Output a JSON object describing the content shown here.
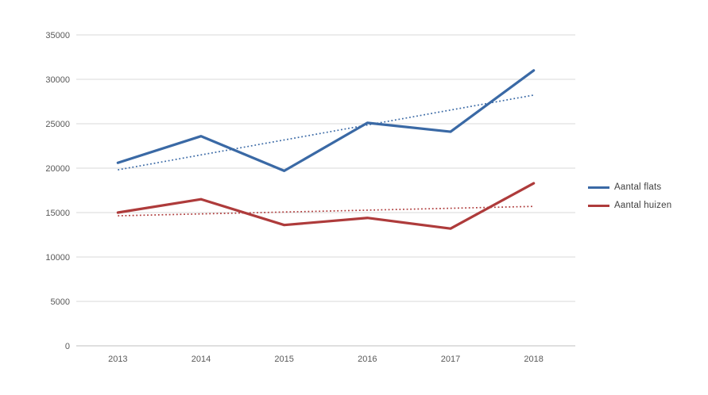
{
  "chart_data": {
    "type": "line",
    "title": "",
    "xlabel": "",
    "ylabel": "",
    "categories": [
      "2013",
      "2014",
      "2015",
      "2016",
      "2017",
      "2018"
    ],
    "series": [
      {
        "name": "Aantal flats",
        "color": "#3A69A5",
        "values": [
          20600,
          23600,
          19700,
          25100,
          24100,
          31000
        ],
        "trendline": true
      },
      {
        "name": "Aantal huizen",
        "color": "#AE3B3B",
        "values": [
          15000,
          16500,
          13600,
          14400,
          13200,
          18300
        ],
        "trendline": true
      }
    ],
    "ylim": [
      0,
      35000
    ],
    "ytick_step": 5000,
    "yticks": [
      "0",
      "5000",
      "10000",
      "15000",
      "20000",
      "25000",
      "30000",
      "35000"
    ],
    "grid": "horizontal",
    "legend_position": "right",
    "trendline_style": "dotted-linear"
  },
  "style": {
    "background": "#FFFFFF",
    "gridline_color": "#D9D9D9",
    "axis_line_color": "#BFBFBF",
    "tick_label_color": "#595959",
    "legend_text_color": "#404040"
  }
}
